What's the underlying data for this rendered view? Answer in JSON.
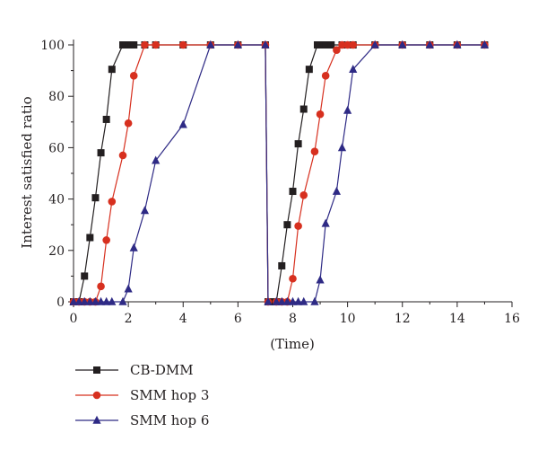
{
  "chart_data": {
    "type": "line",
    "xlabel": "(Time)",
    "ylabel": "Interest satisfied ratio",
    "xlim": [
      0,
      16
    ],
    "ylim": [
      0,
      100
    ],
    "x_ticks": [
      0,
      2,
      4,
      6,
      8,
      10,
      12,
      14,
      16
    ],
    "y_ticks": [
      0,
      20,
      40,
      60,
      80,
      100
    ],
    "grid": false,
    "legend_position": "below-plot-left",
    "series": [
      {
        "name": "CB-DMM",
        "color": "#231f20",
        "marker": "square",
        "points": [
          [
            0,
            0
          ],
          [
            0.2,
            0
          ],
          [
            0.4,
            10
          ],
          [
            0.6,
            25
          ],
          [
            0.8,
            40.5
          ],
          [
            1.0,
            58
          ],
          [
            1.2,
            71
          ],
          [
            1.4,
            90.5
          ],
          [
            1.8,
            100
          ],
          [
            1.9,
            100
          ],
          [
            2.0,
            100
          ],
          [
            2.1,
            100
          ],
          [
            2.2,
            100
          ],
          [
            2.6,
            100
          ],
          [
            3.0,
            100
          ],
          [
            4.0,
            100
          ],
          [
            5.0,
            100
          ],
          [
            6.0,
            100
          ],
          [
            7.0,
            100
          ],
          [
            7.1,
            0
          ],
          [
            7.2,
            0
          ],
          [
            7.4,
            0
          ],
          [
            7.6,
            14
          ],
          [
            7.8,
            30
          ],
          [
            8.0,
            43
          ],
          [
            8.2,
            61.5
          ],
          [
            8.4,
            75
          ],
          [
            8.6,
            90.5
          ],
          [
            8.9,
            100
          ],
          [
            9.0,
            100
          ],
          [
            9.1,
            100
          ],
          [
            9.2,
            100
          ],
          [
            9.4,
            100
          ],
          [
            9.8,
            100
          ],
          [
            10.2,
            100
          ],
          [
            11,
            100
          ],
          [
            12,
            100
          ],
          [
            13,
            100
          ],
          [
            14,
            100
          ],
          [
            15,
            100
          ]
        ]
      },
      {
        "name": "SMM hop 3",
        "color": "#d7301f",
        "marker": "circle",
        "points": [
          [
            0,
            0
          ],
          [
            0.2,
            0
          ],
          [
            0.4,
            0
          ],
          [
            0.6,
            0
          ],
          [
            0.8,
            0
          ],
          [
            1.0,
            6
          ],
          [
            1.2,
            24
          ],
          [
            1.4,
            39
          ],
          [
            1.8,
            57
          ],
          [
            2.0,
            69.5
          ],
          [
            2.2,
            88
          ],
          [
            2.6,
            100
          ],
          [
            3.0,
            100
          ],
          [
            4.0,
            100
          ],
          [
            5.0,
            100
          ],
          [
            6.0,
            100
          ],
          [
            7.0,
            100
          ],
          [
            7.1,
            0
          ],
          [
            7.4,
            0
          ],
          [
            7.6,
            0
          ],
          [
            7.8,
            0
          ],
          [
            8.0,
            9
          ],
          [
            8.2,
            29.5
          ],
          [
            8.4,
            41.5
          ],
          [
            8.8,
            58.5
          ],
          [
            9.0,
            73
          ],
          [
            9.2,
            88
          ],
          [
            9.6,
            98
          ],
          [
            9.8,
            100
          ],
          [
            10.0,
            100
          ],
          [
            10.2,
            100
          ],
          [
            11,
            100
          ],
          [
            12,
            100
          ],
          [
            13,
            100
          ],
          [
            14,
            100
          ],
          [
            15,
            100
          ]
        ]
      },
      {
        "name": "SMM hop 6",
        "color": "#2e2a85",
        "marker": "triangle",
        "points": [
          [
            0,
            0
          ],
          [
            0.2,
            0
          ],
          [
            0.4,
            0
          ],
          [
            0.6,
            0
          ],
          [
            0.8,
            0
          ],
          [
            1.0,
            0
          ],
          [
            1.2,
            0
          ],
          [
            1.4,
            0
          ],
          [
            1.8,
            0
          ],
          [
            2.0,
            5
          ],
          [
            2.2,
            21
          ],
          [
            2.6,
            35.5
          ],
          [
            3.0,
            55
          ],
          [
            4.0,
            69
          ],
          [
            5.0,
            100
          ],
          [
            6.0,
            100
          ],
          [
            7.0,
            100
          ],
          [
            7.1,
            0
          ],
          [
            7.4,
            0
          ],
          [
            7.6,
            0
          ],
          [
            7.8,
            0
          ],
          [
            8.0,
            0
          ],
          [
            8.2,
            0
          ],
          [
            8.4,
            0
          ],
          [
            8.8,
            0
          ],
          [
            9.0,
            8.5
          ],
          [
            9.2,
            30.5
          ],
          [
            9.6,
            43
          ],
          [
            9.8,
            60
          ],
          [
            10.0,
            74.5
          ],
          [
            10.2,
            90.5
          ],
          [
            11,
            100
          ],
          [
            12,
            100
          ],
          [
            13,
            100
          ],
          [
            14,
            100
          ],
          [
            15,
            100
          ]
        ]
      }
    ]
  }
}
